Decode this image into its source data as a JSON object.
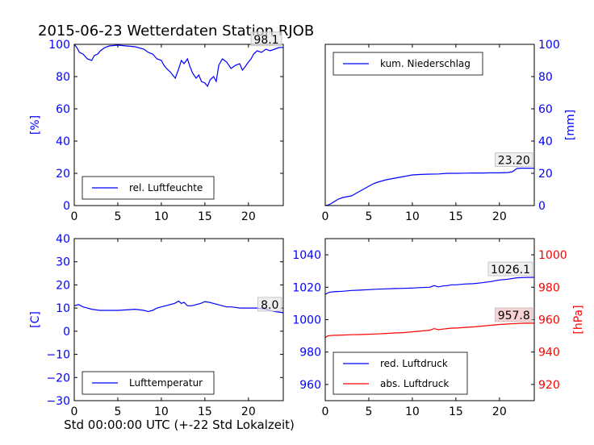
{
  "title": "2015-06-23 Wetterdaten Station RJOB",
  "xlabel": "Std 00:00:00 UTC (+-22 Std Lokalzeit)",
  "colors": {
    "blue": "#0000ff",
    "red": "#ff0000",
    "black": "#000000"
  },
  "chart_data": [
    {
      "type": "line",
      "panel": "top-left",
      "ylabel": "[%]",
      "xlim": [
        0,
        24
      ],
      "ylim": [
        0,
        100
      ],
      "xticks": [
        "0",
        "5",
        "10",
        "15",
        "20"
      ],
      "yticks": [
        "0",
        "20",
        "40",
        "60",
        "80",
        "100"
      ],
      "legend": "bottom-left",
      "last_value_label": "98.1",
      "series": [
        {
          "name": "rel. Luftfeuchte",
          "color": "#0000ff",
          "x": [
            0,
            0.3,
            0.6,
            1,
            1.5,
            2,
            2.3,
            2.7,
            3,
            3.5,
            4,
            5,
            6,
            7,
            8,
            8.5,
            9,
            9.5,
            10,
            10.3,
            10.6,
            11,
            11.3,
            11.6,
            12,
            12.3,
            12.6,
            13,
            13.3,
            13.6,
            14,
            14.3,
            14.6,
            15,
            15.3,
            15.6,
            16,
            16.3,
            16.6,
            17,
            17.5,
            18,
            18.5,
            19,
            19.3,
            19.6,
            20,
            20.3,
            20.6,
            21,
            21.5,
            22,
            22.5,
            23,
            23.5,
            24
          ],
          "y": [
            100,
            98,
            95,
            94,
            91,
            90,
            93,
            94,
            96,
            98,
            99,
            99.5,
            99,
            98.5,
            97,
            95,
            94,
            91,
            90,
            87,
            85,
            83,
            81,
            79,
            85,
            90,
            88,
            91,
            86,
            82,
            79,
            81,
            77,
            76,
            74,
            78,
            80,
            77,
            87,
            91,
            89,
            85,
            87,
            88,
            84,
            86,
            89,
            91,
            94,
            96,
            95,
            97,
            96,
            97,
            98,
            98.1
          ]
        }
      ]
    },
    {
      "type": "line",
      "panel": "top-right",
      "ylabel": "[mm]",
      "xlim": [
        0,
        24
      ],
      "ylim": [
        0,
        100
      ],
      "xticks": [
        "0",
        "5",
        "10",
        "15",
        "20"
      ],
      "yticks": [
        "0",
        "20",
        "40",
        "60",
        "80",
        "100"
      ],
      "legend": "top-left",
      "last_value_label": "23.20",
      "series": [
        {
          "name": "kum. Niederschlag",
          "color": "#0000ff",
          "x": [
            0,
            0.3,
            0.6,
            0.9,
            1.2,
            1.5,
            2,
            2.5,
            3,
            3.5,
            4,
            4.5,
            5,
            5.5,
            6,
            7,
            8,
            9,
            10,
            11,
            12,
            13,
            14,
            15,
            16,
            17,
            18,
            19,
            20,
            21,
            21.5,
            22,
            22.5,
            23,
            24
          ],
          "y": [
            0,
            0.3,
            1,
            2,
            3,
            4,
            5,
            5.5,
            6,
            7.5,
            9,
            10.5,
            12,
            13.5,
            14.5,
            16,
            17,
            18,
            19,
            19.3,
            19.5,
            19.6,
            20,
            20,
            20.1,
            20.2,
            20.2,
            20.3,
            20.3,
            20.5,
            21,
            23,
            23.2,
            23.2,
            23.2
          ]
        }
      ]
    },
    {
      "type": "line",
      "panel": "bottom-left",
      "ylabel": "[C]",
      "xlim": [
        0,
        24
      ],
      "ylim": [
        -30,
        40
      ],
      "xticks": [
        "0",
        "5",
        "10",
        "15",
        "20"
      ],
      "yticks": [
        "−30",
        "−20",
        "−10",
        "0",
        "10",
        "20",
        "30",
        "40"
      ],
      "legend": "bottom-left",
      "last_value_label": "8.0",
      "series": [
        {
          "name": "Lufttemperatur",
          "color": "#0000ff",
          "x": [
            0,
            0.5,
            1,
            1.5,
            2,
            2.5,
            3,
            4,
            5,
            6,
            7,
            8,
            8.5,
            9,
            9.5,
            10,
            10.5,
            11,
            11.5,
            12,
            12.3,
            12.6,
            13,
            13.5,
            14,
            14.5,
            15,
            15.5,
            16,
            16.5,
            17,
            17.5,
            18,
            18.5,
            19,
            19.5,
            20,
            21,
            22,
            23,
            24
          ],
          "y": [
            11,
            11.5,
            10.5,
            10,
            9.5,
            9.2,
            9,
            9,
            9,
            9.2,
            9.5,
            9,
            8.5,
            9,
            10,
            10.5,
            11,
            11.5,
            12,
            13,
            12,
            12.5,
            11,
            11,
            11.5,
            12,
            12.8,
            12.5,
            12,
            11.5,
            11,
            10.5,
            10.5,
            10.3,
            10,
            10,
            10,
            10,
            9.5,
            8.5,
            8.0
          ]
        }
      ]
    },
    {
      "type": "line",
      "panel": "bottom-right",
      "ylabel": "[hPa]",
      "xlim": [
        0,
        24
      ],
      "ylim_left": [
        950,
        1050
      ],
      "ylim_right": [
        910,
        1010
      ],
      "xticks": [
        "0",
        "5",
        "10",
        "15",
        "20"
      ],
      "yticks_left": [
        "960",
        "980",
        "1000",
        "1020",
        "1040"
      ],
      "yticks_right": [
        "920",
        "940",
        "960",
        "980",
        "1000"
      ],
      "legend": "bottom-left",
      "last_value_labels": [
        "1026.1",
        "957.8"
      ],
      "series": [
        {
          "name": "red. Luftdruck",
          "color": "#0000ff",
          "axis": "left",
          "x": [
            0,
            0.3,
            0.6,
            1,
            2,
            3,
            4,
            5,
            6,
            7,
            8,
            9,
            10,
            11,
            12,
            12.5,
            13,
            13.5,
            14,
            14.5,
            15,
            16,
            17,
            18,
            19,
            20,
            21,
            22,
            23,
            24
          ],
          "y": [
            1015.5,
            1016.5,
            1017,
            1017.2,
            1017.5,
            1018,
            1018.2,
            1018.5,
            1018.8,
            1019,
            1019.2,
            1019.3,
            1019.5,
            1019.8,
            1020,
            1021,
            1020.2,
            1020.8,
            1021,
            1021.5,
            1021.5,
            1022,
            1022.2,
            1022.8,
            1023.5,
            1024.5,
            1025,
            1025.8,
            1026,
            1026.1
          ]
        },
        {
          "name": "abs. Luftdruck",
          "color": "#ff0000",
          "axis": "right",
          "x": [
            0,
            0.3,
            0.6,
            1,
            2,
            3,
            4,
            5,
            6,
            7,
            8,
            9,
            10,
            11,
            12,
            12.5,
            13,
            13.5,
            14,
            14.5,
            15,
            16,
            17,
            18,
            19,
            20,
            21,
            22,
            23,
            24
          ],
          "y": [
            949,
            950,
            950.2,
            950.3,
            950.5,
            950.7,
            950.8,
            951,
            951.2,
            951.5,
            951.8,
            952,
            952.5,
            953,
            953.5,
            954.5,
            953.8,
            954.2,
            954.5,
            954.8,
            954.8,
            955.2,
            955.5,
            956,
            956.5,
            957,
            957.3,
            957.6,
            957.8,
            957.8
          ]
        }
      ]
    }
  ]
}
